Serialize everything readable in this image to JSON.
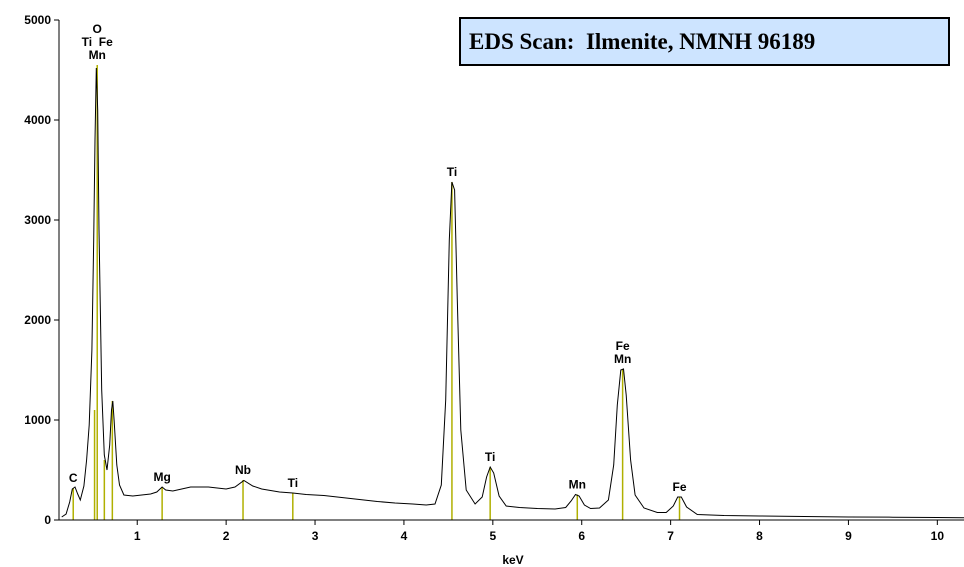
{
  "chart_data": {
    "type": "line",
    "title": "EDS Scan:  Ilmenite, NMNH 96189",
    "xlabel": "keV",
    "ylabel": "",
    "xlim": [
      0.12,
      10.3
    ],
    "ylim": [
      0,
      5000
    ],
    "x_ticks": [
      1,
      2,
      3,
      4,
      5,
      6,
      7,
      8,
      9,
      10
    ],
    "y_ticks": [
      0,
      1000,
      2000,
      3000,
      4000,
      5000
    ],
    "grid": false,
    "colors": {
      "line": "#000000",
      "marker": "#b0b000",
      "title_bg": "#cde4ff"
    },
    "series": [
      {
        "points": [
          [
            0.15,
            30
          ],
          [
            0.2,
            60
          ],
          [
            0.24,
            180
          ],
          [
            0.27,
            310
          ],
          [
            0.3,
            330
          ],
          [
            0.33,
            260
          ],
          [
            0.36,
            200
          ],
          [
            0.4,
            340
          ],
          [
            0.43,
            600
          ],
          [
            0.46,
            950
          ],
          [
            0.49,
            1700
          ],
          [
            0.51,
            2800
          ],
          [
            0.525,
            3800
          ],
          [
            0.54,
            4520
          ],
          [
            0.555,
            4100
          ],
          [
            0.57,
            2900
          ],
          [
            0.6,
            1300
          ],
          [
            0.63,
            650
          ],
          [
            0.66,
            500
          ],
          [
            0.69,
            750
          ],
          [
            0.71,
            1100
          ],
          [
            0.725,
            1190
          ],
          [
            0.74,
            1000
          ],
          [
            0.77,
            550
          ],
          [
            0.8,
            350
          ],
          [
            0.85,
            250
          ],
          [
            0.95,
            240
          ],
          [
            1.05,
            250
          ],
          [
            1.15,
            260
          ],
          [
            1.22,
            280
          ],
          [
            1.28,
            330
          ],
          [
            1.32,
            300
          ],
          [
            1.4,
            290
          ],
          [
            1.5,
            310
          ],
          [
            1.6,
            330
          ],
          [
            1.7,
            330
          ],
          [
            1.8,
            330
          ],
          [
            1.9,
            320
          ],
          [
            2.0,
            310
          ],
          [
            2.1,
            330
          ],
          [
            2.2,
            395
          ],
          [
            2.3,
            340
          ],
          [
            2.4,
            310
          ],
          [
            2.5,
            295
          ],
          [
            2.6,
            280
          ],
          [
            2.75,
            270
          ],
          [
            2.9,
            255
          ],
          [
            3.1,
            245
          ],
          [
            3.3,
            225
          ],
          [
            3.5,
            205
          ],
          [
            3.7,
            185
          ],
          [
            3.9,
            170
          ],
          [
            4.1,
            160
          ],
          [
            4.25,
            150
          ],
          [
            4.35,
            160
          ],
          [
            4.42,
            350
          ],
          [
            4.47,
            1200
          ],
          [
            4.51,
            2800
          ],
          [
            4.54,
            3380
          ],
          [
            4.57,
            3300
          ],
          [
            4.6,
            2200
          ],
          [
            4.64,
            900
          ],
          [
            4.7,
            300
          ],
          [
            4.8,
            160
          ],
          [
            4.88,
            230
          ],
          [
            4.93,
            430
          ],
          [
            4.97,
            530
          ],
          [
            5.01,
            470
          ],
          [
            5.07,
            240
          ],
          [
            5.15,
            140
          ],
          [
            5.3,
            125
          ],
          [
            5.5,
            115
          ],
          [
            5.7,
            110
          ],
          [
            5.82,
            125
          ],
          [
            5.88,
            190
          ],
          [
            5.93,
            255
          ],
          [
            5.97,
            240
          ],
          [
            6.03,
            150
          ],
          [
            6.1,
            115
          ],
          [
            6.2,
            120
          ],
          [
            6.3,
            200
          ],
          [
            6.36,
            550
          ],
          [
            6.4,
            1150
          ],
          [
            6.44,
            1500
          ],
          [
            6.47,
            1510
          ],
          [
            6.5,
            1250
          ],
          [
            6.55,
            600
          ],
          [
            6.6,
            250
          ],
          [
            6.7,
            120
          ],
          [
            6.85,
            75
          ],
          [
            6.95,
            75
          ],
          [
            7.03,
            140
          ],
          [
            7.08,
            230
          ],
          [
            7.12,
            230
          ],
          [
            7.18,
            130
          ],
          [
            7.3,
            55
          ],
          [
            7.6,
            45
          ],
          [
            8.0,
            40
          ],
          [
            8.5,
            35
          ],
          [
            9.0,
            30
          ],
          [
            9.5,
            28
          ],
          [
            10.0,
            25
          ],
          [
            10.3,
            22
          ]
        ]
      }
    ],
    "peak_markers": [
      {
        "x": 0.28,
        "height": 320,
        "labels": [
          "C"
        ]
      },
      {
        "x": 0.52,
        "height": 1100,
        "labels": []
      },
      {
        "x": 0.55,
        "height": 4550,
        "labels": [
          "O",
          "Ti  Fe",
          "Mn"
        ]
      },
      {
        "x": 0.63,
        "height": 600,
        "labels": []
      },
      {
        "x": 0.72,
        "height": 1190,
        "labels": []
      },
      {
        "x": 1.28,
        "height": 330,
        "labels": [
          "Mg"
        ]
      },
      {
        "x": 2.19,
        "height": 400,
        "labels": [
          "Nb"
        ]
      },
      {
        "x": 2.75,
        "height": 270,
        "labels": [
          "Ti"
        ]
      },
      {
        "x": 4.54,
        "height": 3380,
        "labels": [
          "Ti"
        ]
      },
      {
        "x": 4.97,
        "height": 530,
        "labels": [
          "Ti"
        ]
      },
      {
        "x": 5.95,
        "height": 255,
        "labels": [
          "Mn"
        ]
      },
      {
        "x": 6.46,
        "height": 1510,
        "labels": [
          "Fe",
          "Mn"
        ]
      },
      {
        "x": 7.1,
        "height": 230,
        "labels": [
          "Fe"
        ]
      }
    ]
  }
}
